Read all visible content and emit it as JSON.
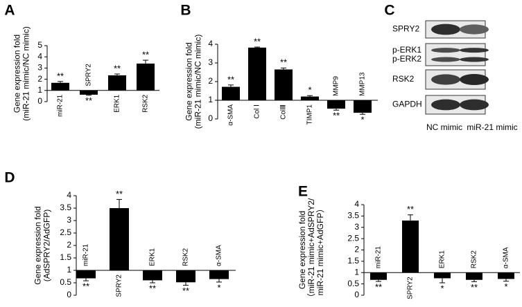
{
  "chart_data": [
    {
      "panel_label": "A",
      "type": "bar",
      "ylabel": [
        "Gene expression fold",
        "(miR-21 mimic/NC mimic)"
      ],
      "categories": [
        "miR-21",
        "SPRY2",
        "ERK1",
        "RSK2"
      ],
      "values": [
        1.68,
        0.62,
        2.35,
        3.4
      ],
      "errors": [
        0.12,
        0.05,
        0.12,
        0.3
      ],
      "significance": [
        "**",
        "**",
        "**",
        "**"
      ],
      "color": "#000000",
      "baseline": 1,
      "ylim": [
        0,
        5
      ],
      "yticks": [
        0,
        1,
        2,
        3,
        4,
        5
      ]
    },
    {
      "panel_label": "B",
      "type": "bar",
      "ylabel": [
        "Gene expression fold",
        "(miR-21 mimic/NC mimic)"
      ],
      "categories": [
        "α-SMA",
        "Col Ⅰ",
        "ColⅢ",
        "TIMP1",
        "MMP9",
        "MMP13"
      ],
      "values": [
        1.72,
        3.82,
        2.65,
        1.2,
        0.55,
        0.33
      ],
      "errors": [
        0.1,
        0.03,
        0.08,
        0.05,
        0.08,
        0.08
      ],
      "significance": [
        "**",
        "**",
        "**",
        "*",
        "**",
        "*"
      ],
      "color": "#000000",
      "baseline": 1,
      "ylim": [
        0,
        4
      ],
      "yticks": [
        0,
        1,
        2,
        3,
        4
      ]
    },
    {
      "panel_label": "D",
      "type": "bar",
      "ylabel": [
        "Gene expression fold",
        "(AdSPRY2/AdGFP)"
      ],
      "categories": [
        "miR-21",
        "SPRY2",
        "ERK1",
        "RSK2",
        "α-SMA"
      ],
      "values": [
        0.68,
        3.5,
        0.6,
        0.52,
        0.65
      ],
      "errors": [
        0.1,
        0.35,
        0.1,
        0.12,
        0.12
      ],
      "significance": [
        "**",
        "**",
        "**",
        "**",
        "*"
      ],
      "color": "#000000",
      "baseline": 1,
      "ylim": [
        0,
        4
      ],
      "yticks": [
        0,
        0.5,
        1,
        1.5,
        2,
        2.5,
        3,
        3.5,
        4
      ]
    },
    {
      "panel_label": "E",
      "type": "bar",
      "ylabel": [
        "Gene expression fold",
        "（miR-21 mimic+AdSPRY2/",
        "miR-21 mimic+AdGFP）"
      ],
      "categories": [
        "miR-21",
        "SPRY2",
        "ERK1",
        "RSK2",
        "α-SMA"
      ],
      "values": [
        0.68,
        3.3,
        0.75,
        0.68,
        0.72
      ],
      "errors": [
        0.07,
        0.25,
        0.2,
        0.08,
        0.1
      ],
      "significance": [
        "**",
        "**",
        "*",
        "**",
        "*"
      ],
      "color": "#000000",
      "baseline": 1,
      "ylim": [
        0,
        4
      ],
      "yticks": [
        0,
        0.5,
        1,
        1.5,
        2,
        2.5,
        3,
        3.5,
        4
      ]
    }
  ],
  "blot": {
    "panel_label": "C",
    "rows": [
      [
        "SPRY2"
      ],
      [
        "p-ERK1",
        "p-ERK2"
      ],
      [
        "RSK2"
      ],
      [
        "GAPDH"
      ]
    ],
    "columns": [
      "NC mimic",
      "miR-21 mimic"
    ]
  }
}
